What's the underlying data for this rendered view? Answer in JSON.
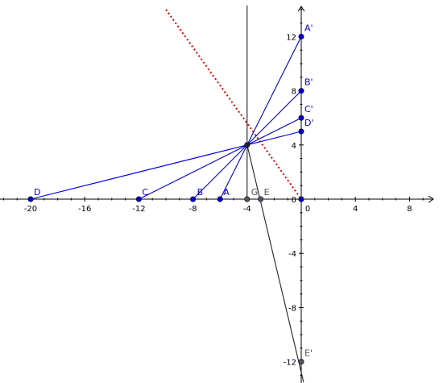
{
  "colors": {
    "axis": "#000000",
    "blue": "#0000cc",
    "gray_point": "#555555",
    "dotted_line": "#e00000",
    "black_line": "#222222"
  },
  "axes": {
    "x_ticks": [
      -20,
      -16,
      -12,
      -8,
      -4,
      0,
      4,
      8
    ],
    "y_ticks": [
      12,
      8,
      4,
      0,
      -4,
      -8,
      -12
    ],
    "x_range": [
      -22.3,
      9.8
    ],
    "y_range": [
      -13.5,
      14.3
    ]
  },
  "lines": [
    {
      "name": "line-D-Dprime",
      "from": [
        -20,
        0
      ],
      "to": [
        0,
        5
      ],
      "color_key": "blue"
    },
    {
      "name": "line-C-Cprime",
      "from": [
        -12,
        0
      ],
      "to": [
        0,
        6
      ],
      "color_key": "blue"
    },
    {
      "name": "line-B-Bprime",
      "from": [
        -8,
        0
      ],
      "to": [
        0,
        8
      ],
      "color_key": "blue"
    },
    {
      "name": "line-A-Aprime",
      "from": [
        -6,
        0
      ],
      "to": [
        0,
        12
      ],
      "color_key": "blue"
    },
    {
      "name": "line-center-Eprime",
      "from": [
        -4,
        4
      ],
      "to": [
        0,
        -12
      ],
      "extend_to": [
        0.17,
        -13.5
      ],
      "color_key": "black_line"
    },
    {
      "name": "vertical-line-x-minus-4",
      "from": [
        -4,
        14.3
      ],
      "to": [
        -4,
        0
      ],
      "color_key": "black_line"
    }
  ],
  "dotted_line": {
    "from": [
      -10,
      14
    ],
    "to": [
      0,
      0
    ]
  },
  "points": [
    {
      "name": "A",
      "label": "A",
      "x": -6,
      "y": 0,
      "color_key": "blue",
      "dx": 4,
      "dy": -5
    },
    {
      "name": "B",
      "label": "B",
      "x": -8,
      "y": 0,
      "color_key": "blue",
      "dx": 5,
      "dy": -5
    },
    {
      "name": "C",
      "label": "C",
      "x": -12,
      "y": 0,
      "color_key": "blue",
      "dx": 4,
      "dy": -5
    },
    {
      "name": "D",
      "label": "D",
      "x": -20,
      "y": 0,
      "color_key": "blue",
      "dx": 4,
      "dy": -5
    },
    {
      "name": "G",
      "label": "G",
      "x": -4,
      "y": 0,
      "color_key": "gray_point",
      "dx": 5,
      "dy": -5
    },
    {
      "name": "E",
      "label": "E",
      "x": -3,
      "y": 0,
      "color_key": "gray_point",
      "dx": 4,
      "dy": -5
    },
    {
      "name": "A-prime",
      "label": "A'",
      "x": 0,
      "y": 12,
      "color_key": "blue",
      "dx": 4,
      "dy": -7
    },
    {
      "name": "B-prime",
      "label": "B'",
      "x": 0,
      "y": 8,
      "color_key": "blue",
      "dx": 4,
      "dy": -7
    },
    {
      "name": "C-prime",
      "label": "C'",
      "x": 0,
      "y": 6,
      "color_key": "blue",
      "dx": 4,
      "dy": -7
    },
    {
      "name": "D-prime",
      "label": "D'",
      "x": 0,
      "y": 5,
      "color_key": "blue",
      "dx": 4,
      "dy": -7
    },
    {
      "name": "E-prime",
      "label": "E'",
      "x": 0,
      "y": -12,
      "color_key": "gray_point",
      "dx": 4,
      "dy": -7
    },
    {
      "name": "origin",
      "label": "",
      "x": 0,
      "y": 0,
      "color_key": "blue",
      "dx": 0,
      "dy": 0
    },
    {
      "name": "center",
      "label": "",
      "x": -4,
      "y": 4,
      "color_key": "black_line",
      "dx": 0,
      "dy": 0
    }
  ]
}
